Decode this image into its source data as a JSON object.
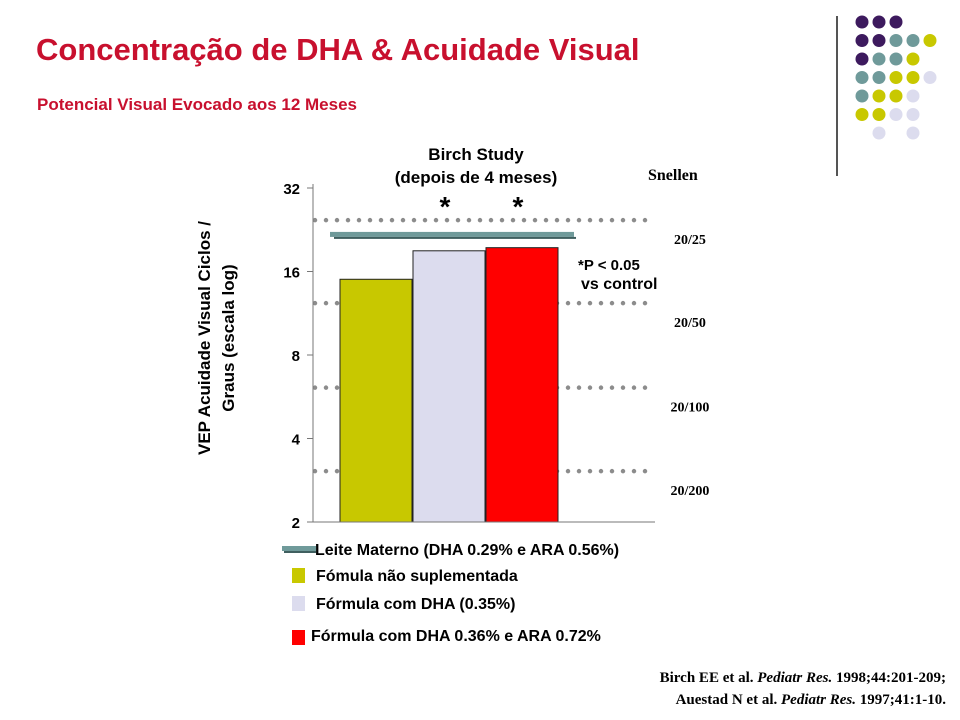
{
  "title": "Concentração de DHA  & Acuidade Visual",
  "subtitle": "Potencial Visual Evocado aos 12 Meses",
  "colors": {
    "title": "#c8102e",
    "olive": "#c8c800",
    "lavender": "#dcdcee",
    "red": "#ff0000",
    "teal": "#6f9a9a",
    "purple": "#3d1a5e",
    "dotted": "#8c8c8c"
  },
  "logo_dots_rows": [
    [
      "purple",
      "purple",
      "purple",
      "none",
      "none"
    ],
    [
      "purple",
      "purple",
      "teal",
      "teal",
      "olive"
    ],
    [
      "purple",
      "teal",
      "teal",
      "olive",
      "none"
    ],
    [
      "teal",
      "teal",
      "olive",
      "olive",
      "lavender"
    ],
    [
      "teal",
      "olive",
      "olive",
      "lavender",
      "none"
    ],
    [
      "olive",
      "olive",
      "lavender",
      "lavender",
      "none"
    ],
    [
      "none",
      "lavender",
      "none",
      "lavender",
      "none"
    ]
  ],
  "chart_data": {
    "type": "bar",
    "title": "Birch Study",
    "subtitle": "(depois de 4 meses)",
    "ylabel": "VEP Acuidade Visual Ciclos / Graus (escala log)",
    "y_scale": "log2",
    "ylim": [
      2,
      32
    ],
    "yticks": [
      "32",
      "16",
      "8",
      "4",
      "2"
    ],
    "ytick_values": [
      32,
      16,
      8,
      4,
      2
    ],
    "categories": [
      "Fómula não suplementada",
      "Fórmula com DHA (0.35%)",
      "Fórmula com DHA 0.36% e ARA 0.72%"
    ],
    "values": [
      15,
      19,
      19.5
    ],
    "bar_colors": [
      "#c8c800",
      "#dcdcee",
      "#ff0000"
    ],
    "significance": [
      "",
      "*",
      "*"
    ],
    "reference_line": {
      "label": "Leite Materno (DHA 0.29% e ARA 0.56%)",
      "value": 21.5
    },
    "annotation_line1": "*P < 0.05",
    "annotation_line2": "vs control",
    "snellen_title": "Snellen",
    "snellen": [
      {
        "label": "20/25",
        "value": 24.5
      },
      {
        "label": "20/50",
        "value": 12.3
      },
      {
        "label": "20/100",
        "value": 6.1
      },
      {
        "label": "20/200",
        "value": 3.05
      }
    ]
  },
  "legend": {
    "breast_milk": "Leite Materno (DHA 0.29% e ARA 0.56%)",
    "unsupplemented": "Fómula não suplementada",
    "dha": "Fórmula com DHA (0.35%)",
    "dha_ara": "Fórmula com DHA 0.36% e ARA 0.72%"
  },
  "references": {
    "line1_authors": "Birch EE et al.",
    "line1_journal": "Pediatr Res.",
    "line1_cite": "1998;44:201-209;",
    "line2_authors": "Auestad N et al.",
    "line2_journal": "Pediatr Res.",
    "line2_cite": "1997;41:1-10."
  }
}
